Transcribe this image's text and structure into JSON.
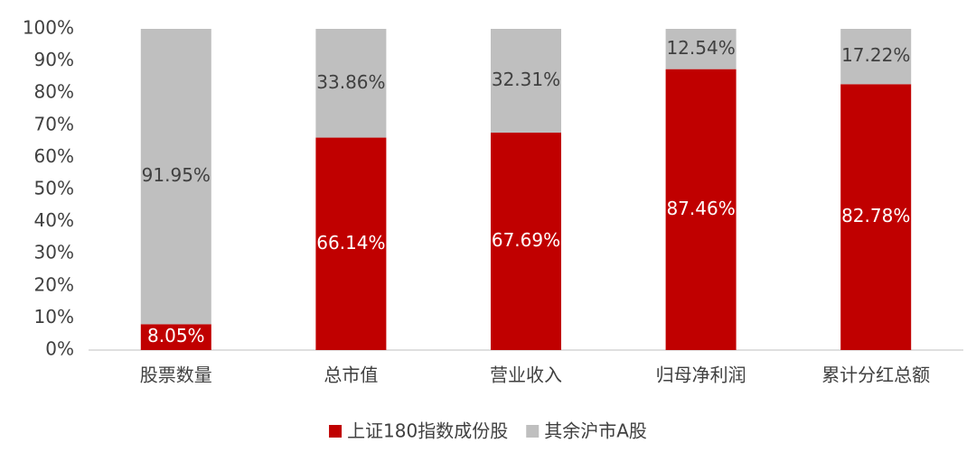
{
  "chart_data": {
    "type": "stacked_bar",
    "categories": [
      "股票数量",
      "总市值",
      "营业收入",
      "归母净利润",
      "累计分红总额"
    ],
    "series": [
      {
        "name": "上证180指数成份股",
        "color": "#c00000",
        "values": [
          8.05,
          66.14,
          67.69,
          87.46,
          82.78
        ],
        "value_labels": [
          "8.05%",
          "66.14%",
          "67.69%",
          "87.46%",
          "82.78%"
        ]
      },
      {
        "name": "其余沪市A股",
        "color": "#bfbfbf",
        "values": [
          91.95,
          33.86,
          32.31,
          12.54,
          17.22
        ],
        "value_labels": [
          "91.95%",
          "33.86%",
          "32.31%",
          "12.54%",
          "17.22%"
        ]
      }
    ],
    "ylim": [
      0,
      100
    ],
    "yticks": [
      {
        "value": 0,
        "label": "0%"
      },
      {
        "value": 10,
        "label": "10%"
      },
      {
        "value": 20,
        "label": "20%"
      },
      {
        "value": 30,
        "label": "30%"
      },
      {
        "value": 40,
        "label": "40%"
      },
      {
        "value": 50,
        "label": "50%"
      },
      {
        "value": 60,
        "label": "60%"
      },
      {
        "value": 70,
        "label": "70%"
      },
      {
        "value": 80,
        "label": "80%"
      },
      {
        "value": 90,
        "label": "90%"
      },
      {
        "value": 100,
        "label": "100%"
      }
    ],
    "legend": "bottom"
  }
}
